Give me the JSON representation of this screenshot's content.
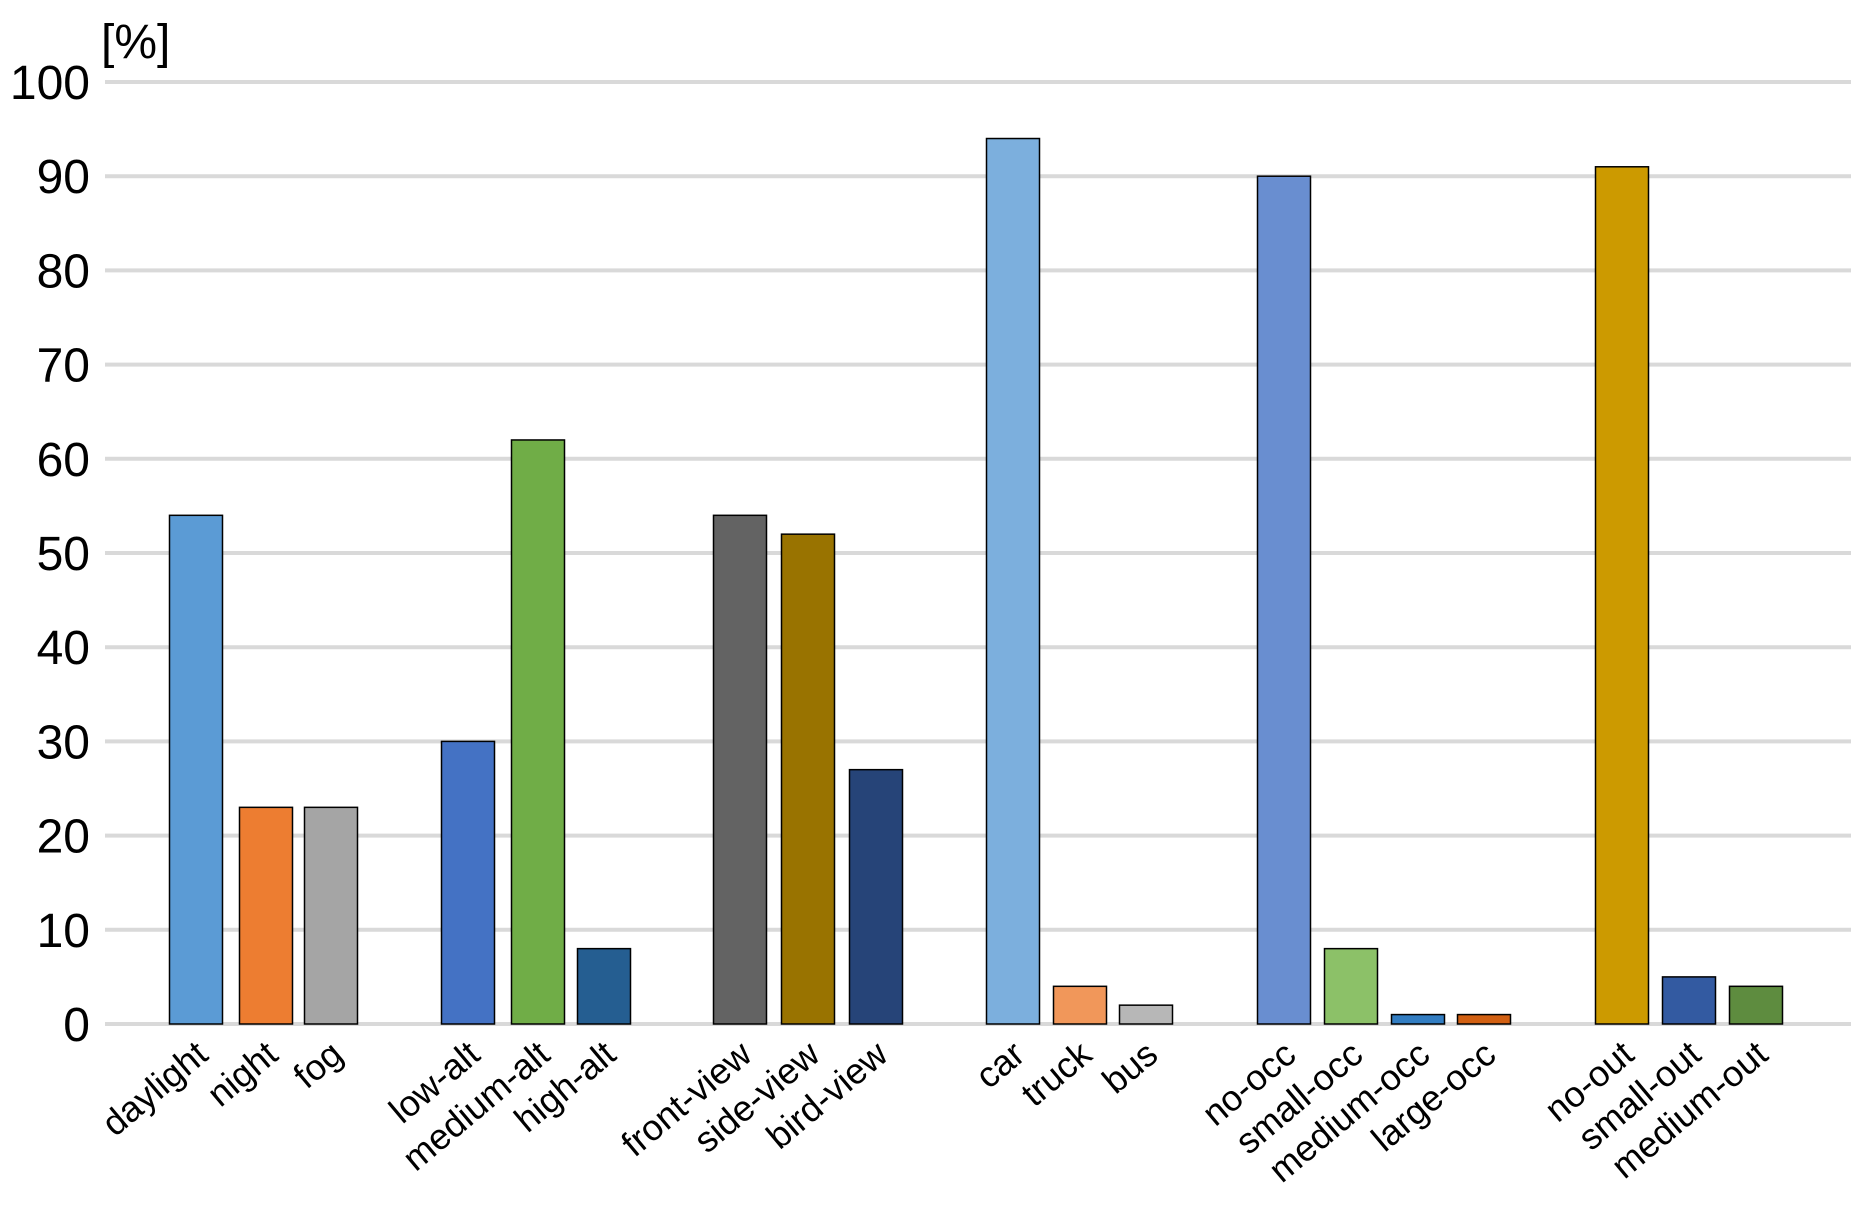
{
  "chart_data": {
    "type": "bar",
    "ylabel": "[%]",
    "ylim": [
      0,
      100
    ],
    "yticks": [
      0,
      10,
      20,
      30,
      40,
      50,
      60,
      70,
      80,
      90,
      100
    ],
    "grid": true,
    "legend": "none",
    "groups": [
      {
        "bars": [
          {
            "label": "daylight",
            "value": 54,
            "color": "#5b9bd5"
          },
          {
            "label": "night",
            "value": 23,
            "color": "#ed7d31"
          },
          {
            "label": "fog",
            "value": 23,
            "color": "#a5a5a5"
          }
        ]
      },
      {
        "bars": [
          {
            "label": "low-alt",
            "value": 30,
            "color": "#4472c4"
          },
          {
            "label": "medium-alt",
            "value": 62,
            "color": "#70ad47"
          },
          {
            "label": "high-alt",
            "value": 8,
            "color": "#255e91"
          }
        ]
      },
      {
        "bars": [
          {
            "label": "front-view",
            "value": 54,
            "color": "#636363"
          },
          {
            "label": "side-view",
            "value": 52,
            "color": "#997300"
          },
          {
            "label": "bird-view",
            "value": 27,
            "color": "#264478"
          }
        ]
      },
      {
        "bars": [
          {
            "label": "car",
            "value": 94,
            "color": "#7cafdd"
          },
          {
            "label": "truck",
            "value": 4,
            "color": "#f1975a"
          },
          {
            "label": "bus",
            "value": 2,
            "color": "#b7b7b7"
          }
        ]
      },
      {
        "bars": [
          {
            "label": "no-occ",
            "value": 90,
            "color": "#698ed0"
          },
          {
            "label": "small-occ",
            "value": 8,
            "color": "#8cc168"
          },
          {
            "label": "medium-occ",
            "value": 1,
            "color": "#327dc2"
          },
          {
            "label": "large-occ",
            "value": 1,
            "color": "#d26012"
          }
        ]
      },
      {
        "bars": [
          {
            "label": "no-out",
            "value": 91,
            "color": "#cc9a00"
          },
          {
            "label": "small-out",
            "value": 5,
            "color": "#335aa1"
          },
          {
            "label": "medium-out",
            "value": 4,
            "color": "#5e8c3f"
          }
        ]
      }
    ]
  }
}
